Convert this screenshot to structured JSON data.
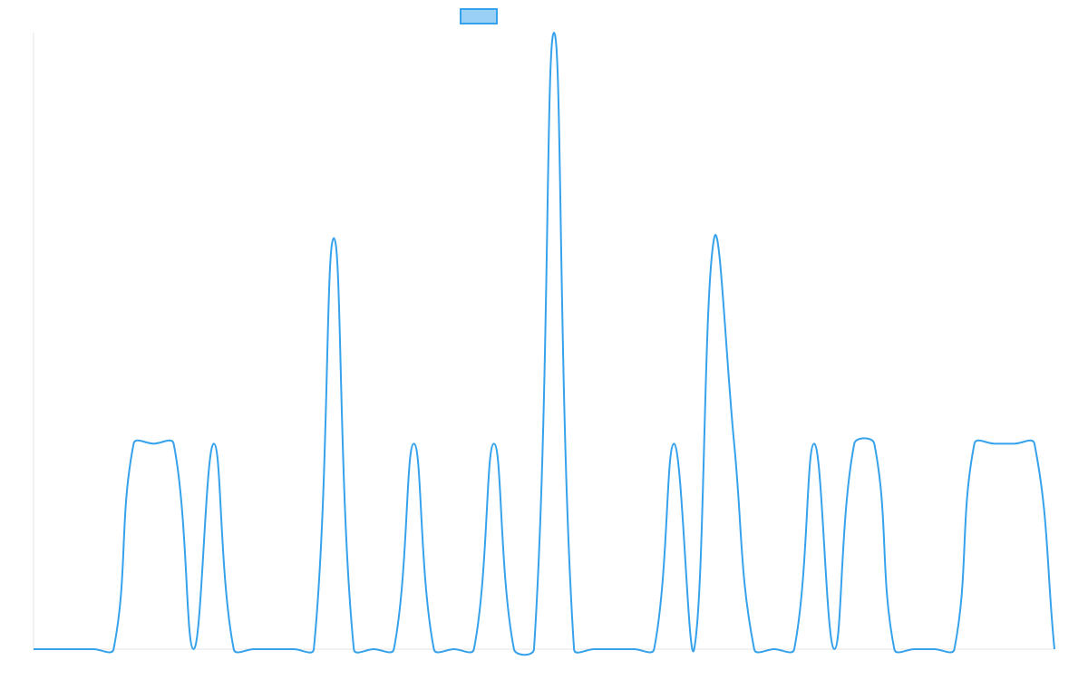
{
  "chart_data": {
    "type": "line",
    "categories": [
      null,
      null,
      null,
      null,
      null,
      null,
      null,
      null,
      null,
      null,
      null,
      null,
      null,
      null,
      null,
      null,
      null,
      null,
      null,
      null,
      null,
      null,
      null,
      null,
      null,
      null,
      null,
      null,
      null,
      null,
      null,
      null,
      null,
      null,
      null,
      null,
      null,
      null,
      null,
      null,
      null,
      null,
      null,
      null,
      null,
      null,
      null,
      null,
      null,
      null,
      null,
      null
    ],
    "series": [
      {
        "color": "#36a2eb",
        "fill": "#9ad0f5",
        "values": [
          0,
          0,
          0,
          0,
          0,
          1,
          1,
          1,
          0,
          1,
          0,
          0,
          0,
          0,
          0,
          2,
          0,
          0,
          0,
          1,
          0,
          0,
          0,
          1,
          0,
          0,
          3,
          0,
          0,
          0,
          0,
          0,
          1,
          0,
          2,
          1,
          0,
          0,
          0,
          1,
          0,
          1,
          1,
          0,
          0,
          0,
          0,
          1,
          1,
          1,
          1,
          0
        ]
      }
    ],
    "ylim": [
      0,
      3
    ],
    "legend": "top"
  }
}
